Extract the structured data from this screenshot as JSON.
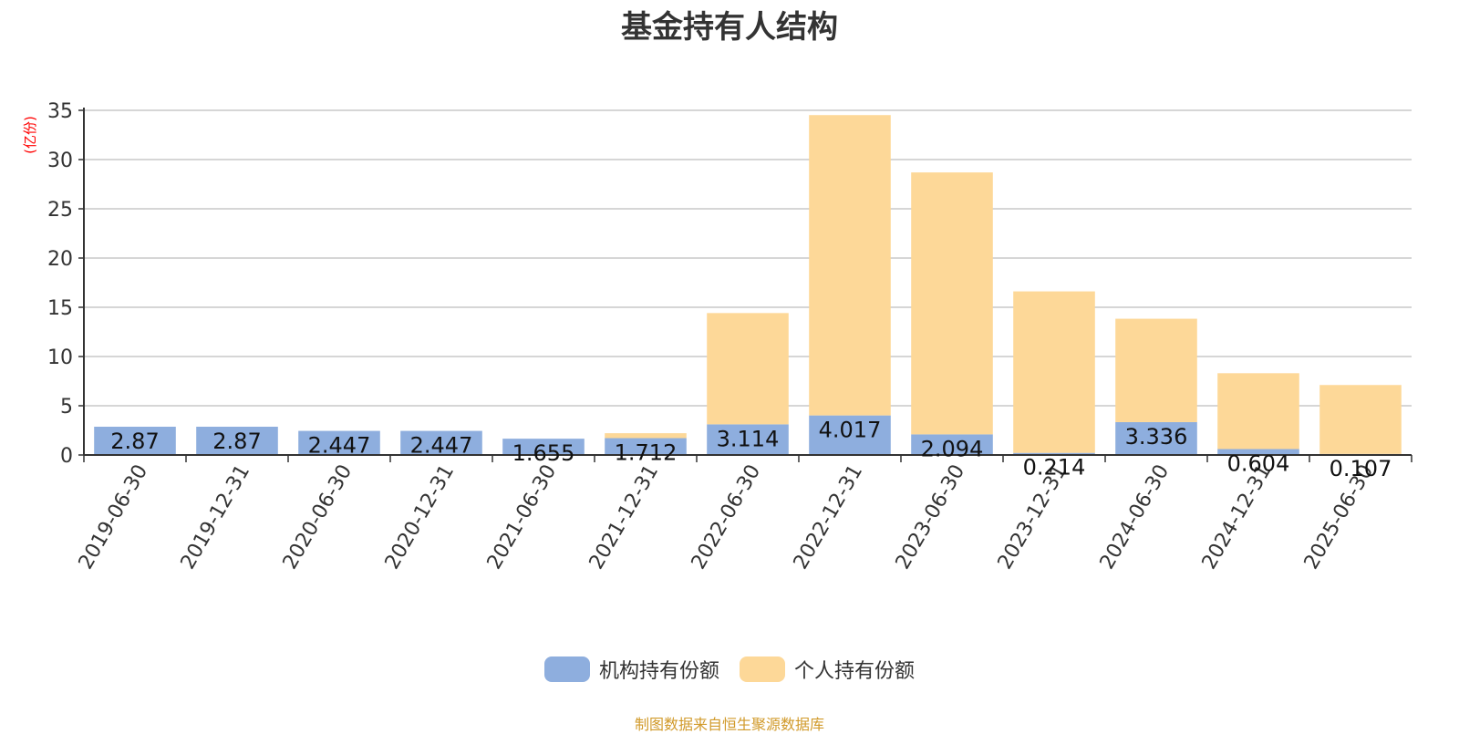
{
  "chart_data": {
    "type": "bar",
    "stacked": true,
    "title": "基金持有人结构",
    "ylabel": "(亿份)",
    "ylim": [
      0,
      35
    ],
    "yticks": [
      0,
      5,
      10,
      15,
      20,
      25,
      30,
      35
    ],
    "grid": true,
    "legend_position": "bottom",
    "categories": [
      "2019-06-30",
      "2019-12-31",
      "2020-06-30",
      "2020-12-31",
      "2021-06-30",
      "2021-12-31",
      "2022-06-30",
      "2022-12-31",
      "2023-06-30",
      "2023-12-31",
      "2024-06-30",
      "2024-12-31",
      "2025-06-30"
    ],
    "series": [
      {
        "name": "机构持有份额",
        "color": "#8eaede",
        "values": [
          2.87,
          2.87,
          2.447,
          2.447,
          1.655,
          1.712,
          3.114,
          4.017,
          2.094,
          0.214,
          3.336,
          0.604,
          0.107
        ],
        "labels": [
          "2.87",
          "2.87",
          "2.447",
          "2.447",
          "1.655",
          "1.712",
          "3.114",
          "4.017",
          "2.094",
          "0.214",
          "3.336",
          "0.604",
          "0.107"
        ]
      },
      {
        "name": "个人持有份额",
        "color": "#fdd898",
        "values": [
          0,
          0,
          0,
          0,
          0,
          0.5,
          11.3,
          30.5,
          26.6,
          16.4,
          10.5,
          7.7,
          7.0
        ]
      }
    ]
  },
  "footer": {
    "source_note": "制图数据来自恒生聚源数据库"
  }
}
